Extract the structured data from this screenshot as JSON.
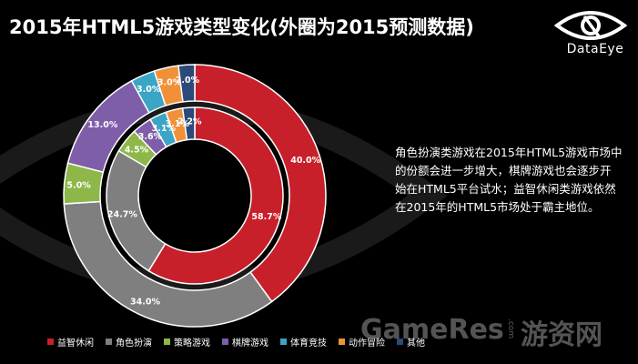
{
  "title": "2015年HTML5游戏类型变化(外圈为2015预测数据)",
  "logo": {
    "text": "DataEye",
    "icon": "eye-logo-icon"
  },
  "description": [
    "角色扮演类游戏在2015年HTML5游戏市场中",
    "的份额会进一步增大，棋牌游戏也会逐步开",
    "始在HTML5平台试水；益智休闲类游戏依然",
    "在2015年的HTML5市场处于霸主地位。"
  ],
  "watermark": {
    "brand": "GameRes",
    "com": ".com",
    "cn": "游资网"
  },
  "chart_data": {
    "type": "pie",
    "subtype": "double-donut",
    "categories": [
      "益智休闲",
      "角色扮演",
      "策略游戏",
      "棋牌游戏",
      "体育竞技",
      "动作冒险",
      "其他"
    ],
    "colors": [
      "#c8202a",
      "#7f7f7f",
      "#8db849",
      "#7e5ea8",
      "#3aa5c4",
      "#f0913a",
      "#2b4a7a"
    ],
    "series": [
      {
        "ring": "inner",
        "values": [
          58.7,
          24.7,
          4.5,
          3.6,
          3.1,
          3.1,
          2.2
        ],
        "labels": [
          "58.7%",
          "24.7%",
          "4.5%",
          "3.6%",
          "3.1%",
          "3.1%",
          "2.2%"
        ]
      },
      {
        "ring": "outer",
        "values": [
          40.0,
          34.0,
          5.0,
          13.0,
          3.0,
          3.0,
          2.0
        ],
        "labels": [
          "40.0%",
          "34.0%",
          "5.0%",
          "13.0%",
          "3.0%",
          "3.0%",
          "2.0%"
        ]
      }
    ],
    "legend": "bottom"
  }
}
